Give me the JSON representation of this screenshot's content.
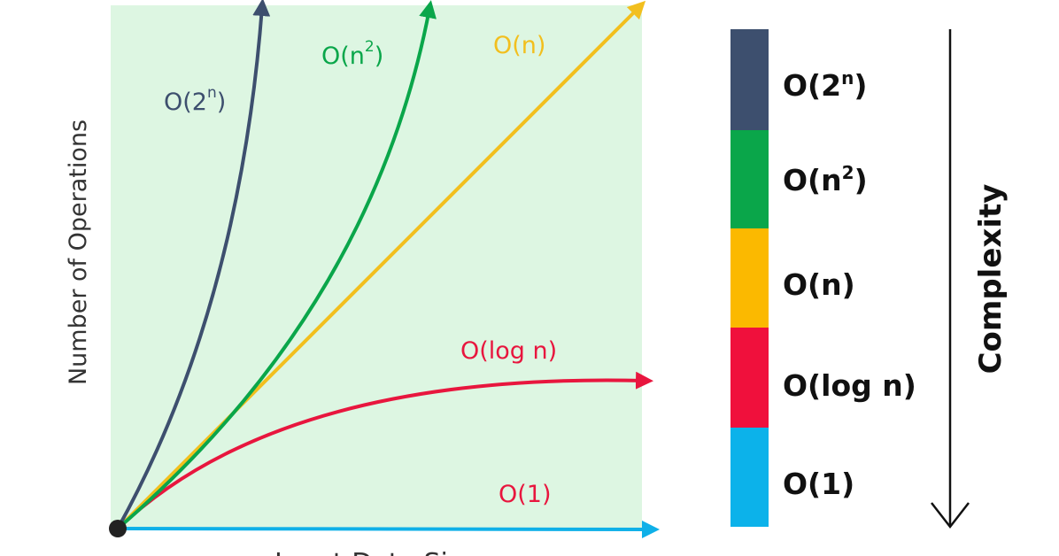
{
  "graph": {
    "y_axis_label": "Number of Operations",
    "x_axis_label": "Input Data Size",
    "curves": [
      {
        "base": "O(2",
        "sup": "n",
        "end": ")"
      },
      {
        "base": "O(n",
        "sup": "2",
        "end": ")"
      },
      {
        "base": "O(n)"
      },
      {
        "base": "O(log n)"
      },
      {
        "base": "O(1)"
      }
    ]
  },
  "legend": {
    "items": [
      {
        "base": "O(2",
        "sup": "n",
        "end": ")"
      },
      {
        "base": "O(n",
        "sup": "2",
        "end": ")"
      },
      {
        "base": "O(n)"
      },
      {
        "base": "O(log n)"
      },
      {
        "base": "O(1)"
      }
    ],
    "axis_label": "Complexity"
  }
}
